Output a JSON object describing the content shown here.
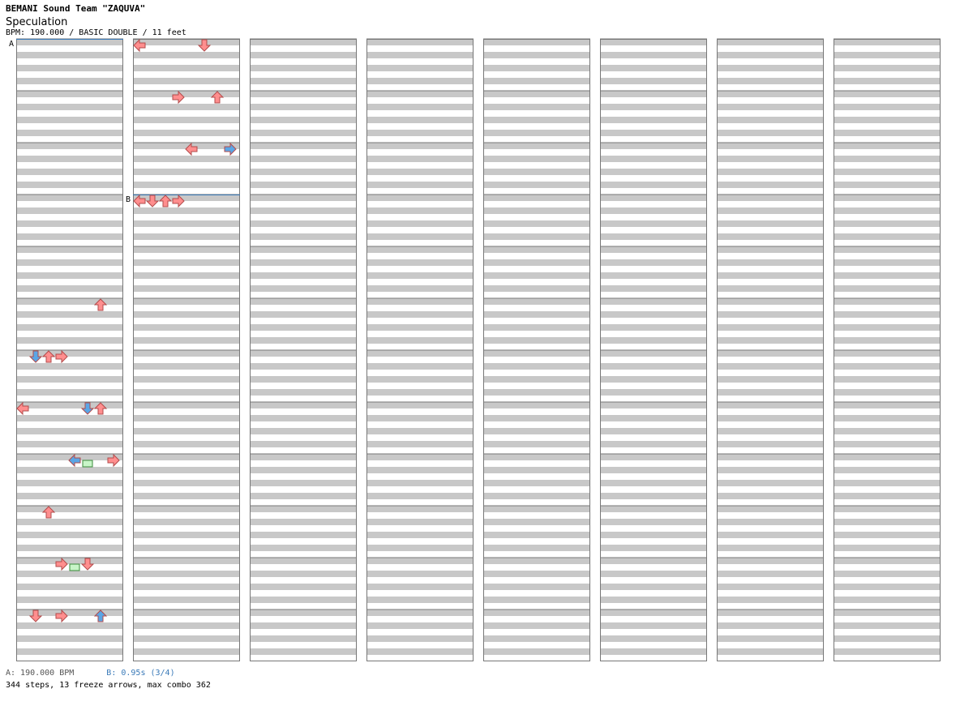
{
  "header": {
    "artist": "BEMANI Sound Team \"ZAQUVA\"",
    "title": "Speculation",
    "info": "BPM: 190.000 / BASIC DOUBLE / 11 feet"
  },
  "markers": [
    {
      "label": "A",
      "column": 0,
      "measure": 0
    },
    {
      "label": "B",
      "column": 1,
      "measure": 3
    }
  ],
  "footer": {
    "bpm_change": "A: 190.000 BPM",
    "stop": "B: 0.95s (3/4)",
    "stats": "344 steps, 13 freeze arrows, max combo 362"
  },
  "chart_data": {
    "type": "step-chart",
    "style": "double",
    "columns": 8,
    "measures_per_column": 12,
    "lanes": [
      "P1-Left",
      "P1-Down",
      "P1-Up",
      "P1-Right",
      "P2-Left",
      "P2-Down",
      "P2-Up",
      "P2-Right"
    ],
    "note_colors": {
      "quarter": "#ff8e8e",
      "eighth": "#5aa6e6",
      "sixteenth": "#e98ee9",
      "other": "#33cc33",
      "freeze": "#c8f5c8"
    },
    "notes": [
      [
        5,
        2,
        6,
        0
      ],
      [
        6,
        2,
        3,
        0
      ],
      [
        6,
        2,
        1,
        1
      ],
      [
        7,
        2,
        6,
        0
      ],
      [
        6,
        2,
        2,
        0
      ],
      [
        7,
        2,
        5,
        1
      ],
      [
        7,
        2,
        0,
        0
      ],
      [
        8,
        2,
        7,
        0
      ],
      [
        8,
        2,
        4,
        1
      ],
      [
        9,
        2,
        2,
        0
      ],
      [
        10,
        2,
        3,
        0
      ],
      [
        10,
        2,
        5,
        0
      ],
      [
        11,
        2,
        1,
        0
      ],
      [
        11,
        2,
        3,
        0
      ],
      [
        11,
        2,
        6,
        1
      ],
      [
        12,
        2,
        0,
        0
      ],
      [
        12,
        2,
        5,
        0
      ],
      [
        13,
        2,
        3,
        0
      ],
      [
        13,
        2,
        6,
        0
      ],
      [
        14,
        2,
        4,
        0
      ],
      [
        14,
        2,
        7,
        1
      ],
      [
        15,
        2,
        0,
        0
      ],
      [
        15,
        2,
        1,
        0
      ],
      [
        15,
        2,
        2,
        0
      ],
      [
        15,
        2,
        3,
        0
      ]
    ],
    "freezes": [
      [
        8,
        2,
        5,
        7
      ],
      [
        10,
        2,
        4,
        7
      ]
    ]
  }
}
